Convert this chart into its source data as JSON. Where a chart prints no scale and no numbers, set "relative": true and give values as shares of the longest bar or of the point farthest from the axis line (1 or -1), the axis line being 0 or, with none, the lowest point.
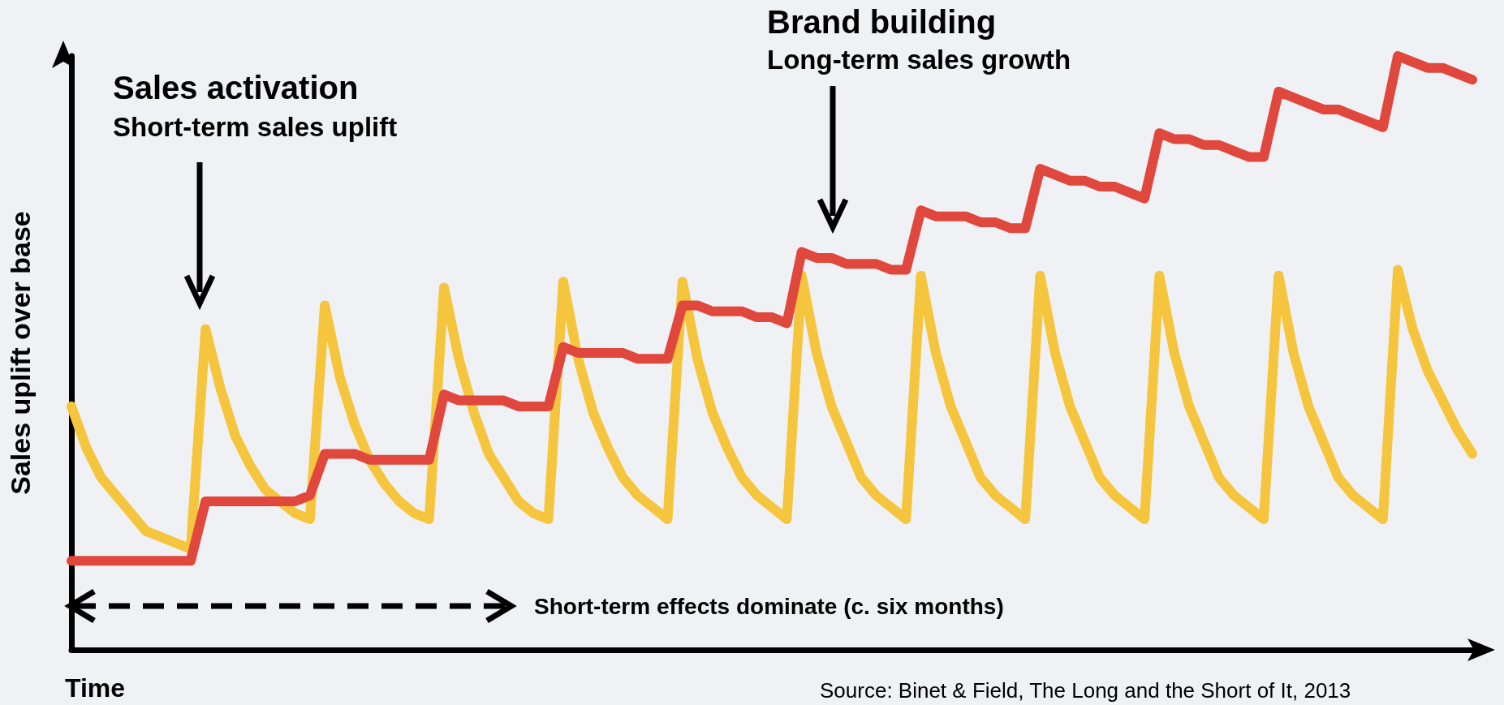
{
  "chart_data": {
    "type": "line",
    "relative": true,
    "marker": "none",
    "xlabel": "Time",
    "ylabel": "Sales uplift over base",
    "categories": [
      null,
      null,
      null,
      null,
      null,
      null,
      null,
      null,
      null,
      null,
      null,
      null,
      null,
      null,
      null,
      null,
      null,
      null,
      null,
      null,
      null,
      null,
      null,
      null,
      null,
      null,
      null,
      null,
      null,
      null,
      null,
      null,
      null,
      null,
      null,
      null,
      null,
      null,
      null,
      null,
      null,
      null,
      null,
      null,
      null,
      null,
      null,
      null,
      null,
      null,
      null,
      null,
      null,
      null,
      null,
      null,
      null,
      null,
      null,
      null,
      null,
      null,
      null,
      null,
      null,
      null,
      null,
      null,
      null,
      null,
      null,
      null,
      null,
      null,
      null,
      null,
      null,
      null,
      null,
      null,
      null,
      null,
      null,
      null,
      null,
      null,
      null,
      null,
      null,
      null,
      null,
      null,
      null,
      null,
      null
    ],
    "series": [
      {
        "color": "#f5c53d",
        "values": [
          0.41,
          0.34,
          0.29,
          0.26,
          0.23,
          0.2,
          0.19,
          0.18,
          0.17,
          0.54,
          0.44,
          0.36,
          0.31,
          0.27,
          0.25,
          0.23,
          0.22,
          0.58,
          0.46,
          0.38,
          0.32,
          0.28,
          0.25,
          0.23,
          0.22,
          0.61,
          0.49,
          0.4,
          0.33,
          0.29,
          0.25,
          0.23,
          0.22,
          0.62,
          0.49,
          0.4,
          0.34,
          0.29,
          0.26,
          0.24,
          0.22,
          0.62,
          0.49,
          0.4,
          0.34,
          0.29,
          0.26,
          0.24,
          0.22,
          0.63,
          0.5,
          0.41,
          0.35,
          0.29,
          0.26,
          0.24,
          0.22,
          0.63,
          0.5,
          0.41,
          0.35,
          0.29,
          0.26,
          0.24,
          0.22,
          0.63,
          0.5,
          0.41,
          0.35,
          0.29,
          0.26,
          0.24,
          0.22,
          0.63,
          0.5,
          0.41,
          0.35,
          0.29,
          0.26,
          0.24,
          0.22,
          0.63,
          0.5,
          0.41,
          0.35,
          0.29,
          0.26,
          0.24,
          0.22,
          0.64,
          0.54,
          0.47,
          0.42,
          0.37,
          0.33
        ]
      },
      {
        "color": "#e0473d",
        "values": [
          0.15,
          0.15,
          0.15,
          0.15,
          0.15,
          0.15,
          0.15,
          0.15,
          0.15,
          0.25,
          0.25,
          0.25,
          0.25,
          0.25,
          0.25,
          0.25,
          0.26,
          0.33,
          0.33,
          0.33,
          0.32,
          0.32,
          0.32,
          0.32,
          0.32,
          0.43,
          0.42,
          0.42,
          0.42,
          0.42,
          0.41,
          0.41,
          0.41,
          0.51,
          0.5,
          0.5,
          0.5,
          0.5,
          0.49,
          0.49,
          0.49,
          0.58,
          0.58,
          0.57,
          0.57,
          0.57,
          0.56,
          0.56,
          0.55,
          0.67,
          0.66,
          0.66,
          0.65,
          0.65,
          0.65,
          0.64,
          0.64,
          0.74,
          0.73,
          0.73,
          0.73,
          0.72,
          0.72,
          0.71,
          0.71,
          0.81,
          0.8,
          0.79,
          0.79,
          0.78,
          0.78,
          0.77,
          0.76,
          0.87,
          0.86,
          0.86,
          0.85,
          0.85,
          0.84,
          0.83,
          0.83,
          0.94,
          0.93,
          0.92,
          0.91,
          0.91,
          0.9,
          0.89,
          0.88,
          1,
          0.99,
          0.98,
          0.98,
          0.97,
          0.96
        ]
      }
    ],
    "annotations": [
      "Sales activation",
      "Short-term sales uplift",
      "Brand building",
      "Long-term sales growth",
      "Short-term effects dominate (c. six months)",
      "Source: Binet & Field, The Long and the Short of It, 2013"
    ]
  }
}
